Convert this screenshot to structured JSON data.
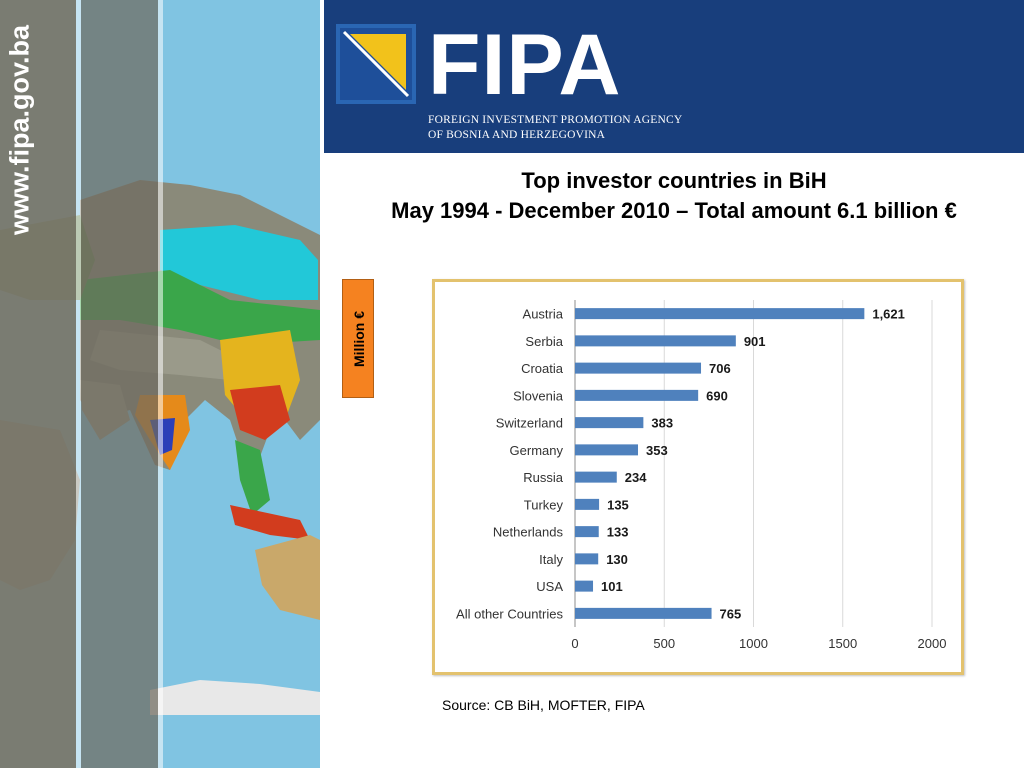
{
  "site_url": "www.fipa.gov.ba",
  "header": {
    "logo_word": "FIPA",
    "logo_line1": "FOREIGN INVESTMENT PROMOTION AGENCY",
    "logo_line2": "OF BOSNIA AND HERZEGOVINA",
    "bg_color": "#183e7c",
    "accent_color": "#f2c21b"
  },
  "title_line1": "Top investor countries in BiH",
  "title_line2": "May 1994 - December 2010 – Total amount 6.1 billion €",
  "unit_label": "Million €",
  "source": "Source: CB BiH, MOFTER, FIPA",
  "chart_data": {
    "type": "bar",
    "orientation": "horizontal",
    "categories": [
      "Austria",
      "Serbia",
      "Croatia",
      "Slovenia",
      "Switzerland",
      "Germany",
      "Russia",
      "Turkey",
      "Netherlands",
      "Italy",
      "USA",
      "All other Countries"
    ],
    "values": [
      1621,
      901,
      706,
      690,
      383,
      353,
      234,
      135,
      133,
      130,
      101,
      765
    ],
    "value_labels": [
      "1,621",
      "901",
      "706",
      "690",
      "383",
      "353",
      "234",
      "135",
      "133",
      "130",
      "101",
      "765"
    ],
    "xlim": [
      0,
      2000
    ],
    "xticks": [
      "0",
      "500",
      "1000",
      "1500",
      "2000"
    ],
    "bar_color": "#4f81bd",
    "grid": true,
    "legend": "none"
  }
}
